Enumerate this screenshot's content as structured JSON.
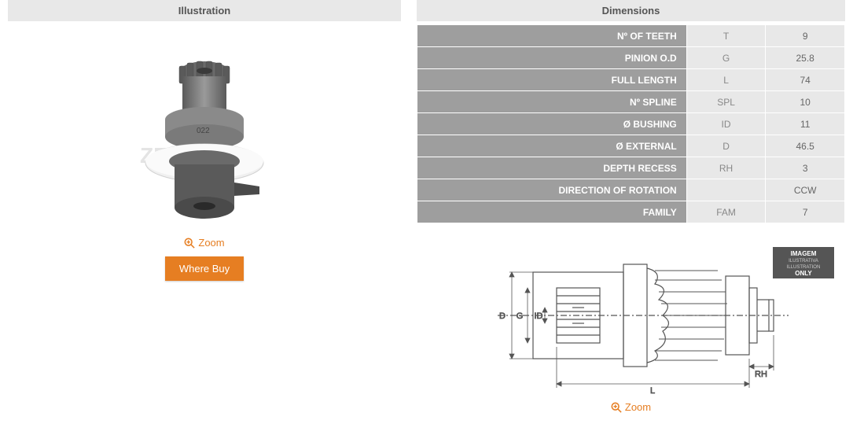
{
  "left": {
    "header": "Illustration",
    "zoom_label": "Zoom",
    "where_buy_label": "Where Buy",
    "watermark_text": "ZEN S.A.",
    "part_stamp": "022"
  },
  "right": {
    "header": "Dimensions",
    "zoom_label": "Zoom",
    "rows": [
      {
        "label": "Nº OF TEETH",
        "code": "T",
        "value": "9"
      },
      {
        "label": "PINION O.D",
        "code": "G",
        "value": "25.8"
      },
      {
        "label": "FULL LENGTH",
        "code": "L",
        "value": "74"
      },
      {
        "label": "Nº SPLINE",
        "code": "SPL",
        "value": "10"
      },
      {
        "label": "Ø BUSHING",
        "code": "ID",
        "value": "11"
      },
      {
        "label": "Ø EXTERNAL",
        "code": "D",
        "value": "46.5"
      },
      {
        "label": "DEPTH RECESS",
        "code": "RH",
        "value": "3"
      },
      {
        "label": "DIRECTION OF ROTATION",
        "code": "",
        "value": "CCW"
      },
      {
        "label": "FAMILY",
        "code": "FAM",
        "value": "7"
      }
    ],
    "diagram_badge": {
      "line1": "IMAGEM",
      "line2": "ILUSTRATIVA",
      "line3": "ILLUSTRATION",
      "line4": "ONLY"
    },
    "diagram_labels": {
      "d": "D",
      "g": "G",
      "id": "ID",
      "rh": "RH",
      "l": "L"
    }
  },
  "colors": {
    "header_bg": "#e8e8e8",
    "label_bg": "#9e9e9e",
    "accent": "#e67e22",
    "text": "#555555",
    "muted": "#888888"
  }
}
